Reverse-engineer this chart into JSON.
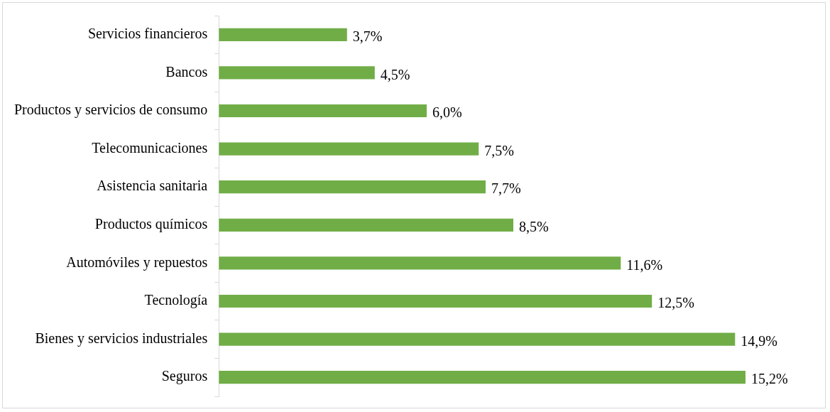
{
  "chart_data": {
    "type": "bar",
    "orientation": "horizontal",
    "categories": [
      "Servicios financieros",
      "Bancos",
      "Productos y servicios de consumo",
      "Telecomunicaciones",
      "Asistencia sanitaria",
      "Productos químicos",
      "Automóviles y repuestos",
      "Tecnología",
      "Bienes y servicios industriales",
      "Seguros"
    ],
    "values": [
      3.7,
      4.5,
      6.0,
      7.5,
      7.7,
      8.5,
      11.6,
      12.5,
      14.9,
      15.2
    ],
    "value_labels": [
      "3,7%",
      "4,5%",
      "6,0%",
      "7,5%",
      "7,7%",
      "8,5%",
      "11,6%",
      "12,5%",
      "14,9%",
      "15,2%"
    ],
    "color": "#70ad47",
    "legend": false,
    "tick_labels": "y"
  }
}
